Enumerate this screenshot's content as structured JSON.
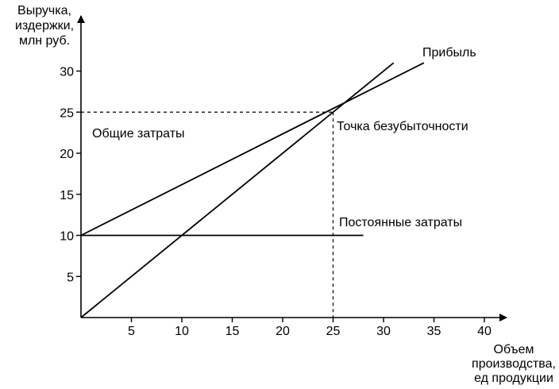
{
  "chart_data": {
    "type": "line",
    "ylabel_lines": [
      "Выручка,",
      "издержки,",
      "млн руб."
    ],
    "xlabel_lines": [
      "Объем",
      "производства,",
      "ед продукции"
    ],
    "xlim": [
      0,
      40
    ],
    "ylim": [
      0,
      30
    ],
    "x_ticks": [
      5,
      10,
      15,
      20,
      25,
      30,
      35,
      40
    ],
    "y_ticks": [
      5,
      10,
      15,
      20,
      25,
      30
    ],
    "grid": false,
    "lines": [
      {
        "id": "revenue",
        "points": [
          [
            0,
            0
          ],
          [
            31,
            31
          ]
        ]
      },
      {
        "id": "total_costs",
        "points": [
          [
            0,
            10
          ],
          [
            34,
            31
          ]
        ]
      },
      {
        "id": "fixed_costs",
        "points": [
          [
            0,
            10
          ],
          [
            28,
            10
          ]
        ]
      }
    ],
    "break_even": {
      "x": 25,
      "y": 25
    },
    "annotations": {
      "profit": "Прибыль",
      "total_costs": "Общие затраты",
      "break_even": "Точка безубыточности",
      "fixed_costs": "Постоянные затраты"
    }
  }
}
